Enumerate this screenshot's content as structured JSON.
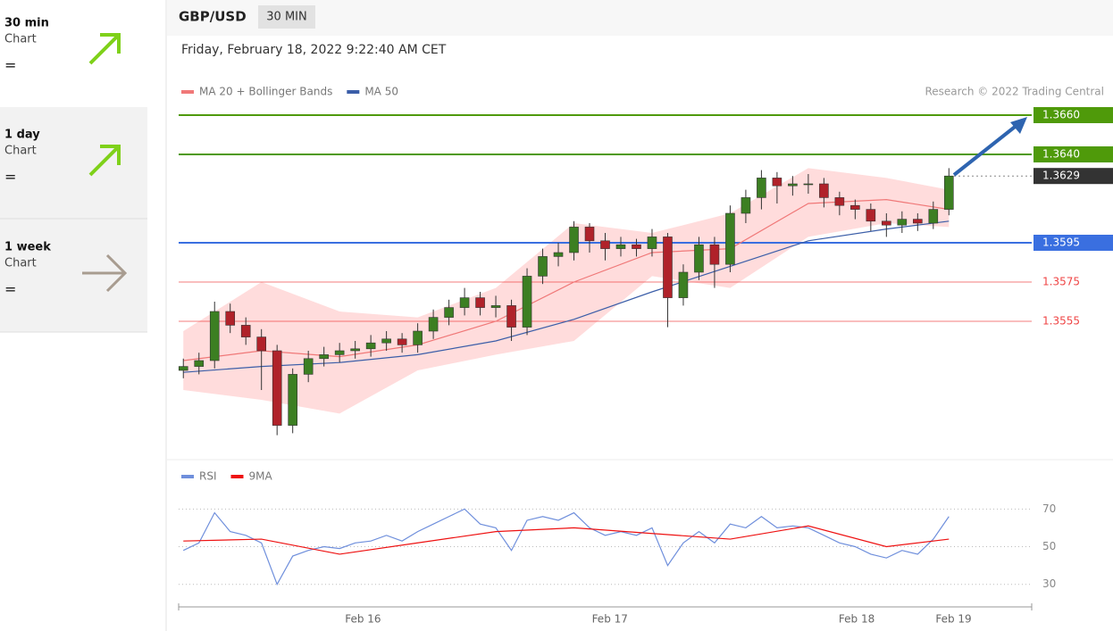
{
  "sidebar": [
    {
      "period": "30 min",
      "kind": "Chart",
      "signal": "="
    },
    {
      "period": "1 day",
      "kind": "Chart",
      "signal": "="
    },
    {
      "period": "1 week",
      "kind": "Chart",
      "signal": "="
    }
  ],
  "chart_data": [
    {
      "type": "candlestick",
      "title": "GBP/USD",
      "timeframe": "30 MIN",
      "subtitle": "Friday, February 18, 2022 9:22:40 AM CET",
      "source": "Research © 2022 Trading Central",
      "xlim": [
        -0.3,
        54.3
      ],
      "ylim": [
        1.3485,
        1.368
      ],
      "up_color": "#3c7f22",
      "down_color": "#b0222a",
      "x": [
        0,
        1,
        2,
        3,
        4,
        5,
        6,
        7,
        8,
        9,
        10,
        11,
        12,
        13,
        14,
        15,
        16,
        17,
        18,
        19,
        20,
        21,
        22,
        23,
        24,
        25,
        26,
        27,
        28,
        29,
        30,
        31,
        32,
        33,
        34,
        35,
        36,
        37,
        38,
        39,
        40,
        41,
        42,
        43,
        44,
        45,
        46,
        47,
        48,
        49
      ],
      "open": [
        1.353,
        1.3532,
        1.3535,
        1.356,
        1.3553,
        1.3547,
        1.354,
        1.3502,
        1.3528,
        1.3536,
        1.3538,
        1.354,
        1.3541,
        1.3544,
        1.3546,
        1.3543,
        1.355,
        1.3557,
        1.3562,
        1.3567,
        1.3562,
        1.3563,
        1.3552,
        1.3578,
        1.3588,
        1.359,
        1.3603,
        1.3596,
        1.3592,
        1.3594,
        1.3592,
        1.3598,
        1.3567,
        1.358,
        1.3594,
        1.3584,
        1.361,
        1.3618,
        1.3628,
        1.3624,
        1.3625,
        1.3625,
        1.3618,
        1.3614,
        1.3612,
        1.3606,
        1.3604,
        1.3607,
        1.3605,
        1.3612
      ],
      "high": [
        1.3536,
        1.3539,
        1.3565,
        1.3564,
        1.3557,
        1.3551,
        1.3543,
        1.3531,
        1.354,
        1.3542,
        1.3544,
        1.3545,
        1.3548,
        1.355,
        1.3549,
        1.3554,
        1.3561,
        1.3566,
        1.3572,
        1.357,
        1.3568,
        1.3566,
        1.3582,
        1.3592,
        1.3595,
        1.3606,
        1.3605,
        1.36,
        1.3598,
        1.3597,
        1.3602,
        1.36,
        1.3584,
        1.3598,
        1.3598,
        1.3614,
        1.3622,
        1.3632,
        1.3631,
        1.3629,
        1.363,
        1.3628,
        1.3621,
        1.3617,
        1.3615,
        1.361,
        1.3611,
        1.361,
        1.3616,
        1.3633
      ],
      "low": [
        1.3526,
        1.3528,
        1.3531,
        1.3549,
        1.3543,
        1.352,
        1.3497,
        1.3498,
        1.3524,
        1.3532,
        1.3534,
        1.3536,
        1.3537,
        1.354,
        1.3539,
        1.3539,
        1.3546,
        1.3553,
        1.3558,
        1.3558,
        1.3557,
        1.3545,
        1.3548,
        1.3574,
        1.3583,
        1.3586,
        1.359,
        1.3586,
        1.3588,
        1.3588,
        1.3588,
        1.3552,
        1.3563,
        1.3576,
        1.3572,
        1.358,
        1.3605,
        1.3612,
        1.3615,
        1.3619,
        1.362,
        1.3613,
        1.3609,
        1.3607,
        1.3601,
        1.3598,
        1.36,
        1.3601,
        1.3602,
        1.3609
      ],
      "close": [
        1.3532,
        1.3535,
        1.356,
        1.3553,
        1.3547,
        1.354,
        1.3502,
        1.3528,
        1.3536,
        1.3538,
        1.354,
        1.3541,
        1.3544,
        1.3546,
        1.3543,
        1.355,
        1.3557,
        1.3562,
        1.3567,
        1.3562,
        1.3563,
        1.3552,
        1.3578,
        1.3588,
        1.359,
        1.3603,
        1.3596,
        1.3592,
        1.3594,
        1.3592,
        1.3598,
        1.3567,
        1.358,
        1.3594,
        1.3584,
        1.361,
        1.3618,
        1.3628,
        1.3624,
        1.3625,
        1.3625,
        1.3618,
        1.3614,
        1.3612,
        1.3606,
        1.3604,
        1.3607,
        1.3605,
        1.3612,
        1.3629
      ],
      "overlays": [
        {
          "name": "MA 20 + Bollinger Bands",
          "color": "#f07878",
          "band_color": "#ffdcdc",
          "x": [
            0,
            5,
            10,
            15,
            20,
            25,
            30,
            35,
            40,
            45,
            49
          ],
          "values": [
            1.3535,
            1.354,
            1.3537,
            1.3543,
            1.3555,
            1.3575,
            1.359,
            1.3592,
            1.3615,
            1.3617,
            1.3612
          ],
          "upper": [
            1.355,
            1.3575,
            1.356,
            1.3557,
            1.3572,
            1.3605,
            1.36,
            1.361,
            1.3633,
            1.3628,
            1.3622
          ],
          "lower": [
            1.352,
            1.3515,
            1.3508,
            1.353,
            1.3538,
            1.3545,
            1.3578,
            1.3572,
            1.3598,
            1.3605,
            1.3603
          ]
        },
        {
          "name": "MA 50",
          "color": "#3b5ea8",
          "x": [
            0,
            5,
            10,
            15,
            20,
            25,
            30,
            35,
            40,
            45,
            49
          ],
          "values": [
            1.3529,
            1.3532,
            1.3534,
            1.3538,
            1.3545,
            1.3556,
            1.357,
            1.3583,
            1.3596,
            1.3602,
            1.3606
          ]
        }
      ],
      "levels": [
        {
          "value": 1.366,
          "label": "1.3660",
          "color": "#4f9a0a",
          "boxed": true,
          "line": "solid"
        },
        {
          "value": 1.364,
          "label": "1.3640",
          "color": "#4f9a0a",
          "boxed": true,
          "line": "solid"
        },
        {
          "value": 1.3629,
          "label": "1.3629",
          "color": "#333333",
          "boxed": true,
          "line": "dotted"
        },
        {
          "value": 1.3595,
          "label": "1.3595",
          "color": "#3a6fe0",
          "boxed": true,
          "line": "solid"
        },
        {
          "value": 1.3575,
          "label": "1.3575",
          "color": "#ef4545",
          "boxed": false,
          "line": "thin"
        },
        {
          "value": 1.3555,
          "label": "1.3555",
          "color": "#ef4545",
          "boxed": false,
          "line": "thin"
        }
      ]
    },
    {
      "type": "line",
      "xlim": [
        -0.3,
        54.3
      ],
      "ylim": [
        18,
        82
      ],
      "yticks": [
        30,
        50,
        70
      ],
      "xticks": [
        {
          "value": 11.5,
          "label": "Feb 16"
        },
        {
          "value": 27.3,
          "label": "Feb 17"
        },
        {
          "value": 43.1,
          "label": "Feb 18"
        },
        {
          "value": 49.3,
          "label": "Feb 19"
        }
      ],
      "series": [
        {
          "name": "RSI",
          "color": "#6f8fdc",
          "x": [
            0,
            1,
            2,
            3,
            4,
            5,
            6,
            7,
            8,
            9,
            10,
            11,
            12,
            13,
            14,
            15,
            16,
            17,
            18,
            19,
            20,
            21,
            22,
            23,
            24,
            25,
            26,
            27,
            28,
            29,
            30,
            31,
            32,
            33,
            34,
            35,
            36,
            37,
            38,
            39,
            40,
            41,
            42,
            43,
            44,
            45,
            46,
            47,
            48,
            49
          ],
          "values": [
            48,
            52,
            68,
            58,
            56,
            52,
            30,
            45,
            48,
            50,
            49,
            52,
            53,
            56,
            53,
            58,
            62,
            66,
            70,
            62,
            60,
            48,
            64,
            66,
            64,
            68,
            60,
            56,
            58,
            56,
            60,
            40,
            52,
            58,
            52,
            62,
            60,
            66,
            60,
            61,
            60,
            56,
            52,
            50,
            46,
            44,
            48,
            46,
            54,
            66
          ]
        },
        {
          "name": "9MA",
          "color": "#ee1111",
          "x": [
            0,
            5,
            10,
            15,
            20,
            25,
            30,
            35,
            40,
            45,
            49
          ],
          "values": [
            53,
            54,
            46,
            52,
            58,
            60,
            57,
            54,
            61,
            50,
            54
          ]
        }
      ]
    }
  ]
}
